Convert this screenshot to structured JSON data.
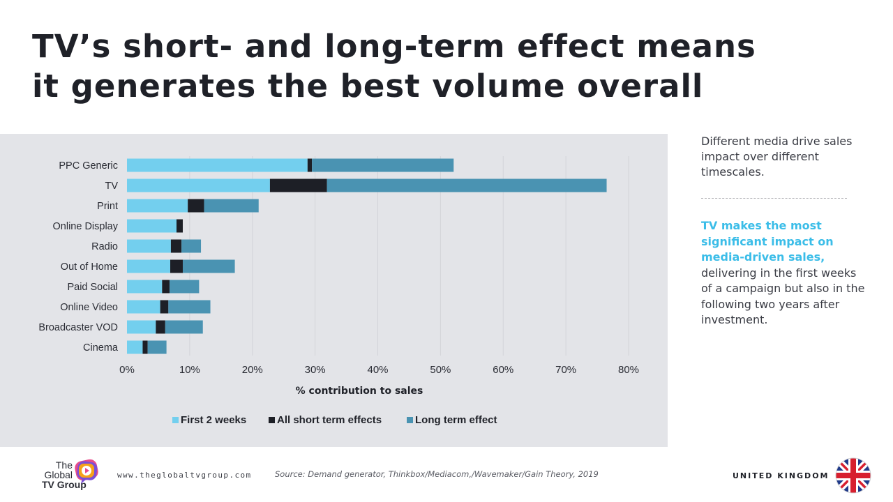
{
  "slide": {
    "title_line1": "TV’s short- and long-term effect means",
    "title_line2": "it generates the best volume overall"
  },
  "side": {
    "intro": "Different media drive sales impact over different timescales.",
    "highlight": "TV makes the most significant impact on media-driven sales,",
    "body": "delivering in the first weeks of a campaign but  also in the following two years after investment."
  },
  "footer": {
    "logo_line1": "The",
    "logo_line2": "Global",
    "logo_line3": "TV Group",
    "website": "www.theglobaltvgroup.com",
    "source": "Source:  Demand generator, Thinkbox/Mediacom,/Wavemaker/Gain Theory, 2019",
    "country": "UNITED KINGDOM"
  },
  "colors": {
    "first": "#73cfee",
    "short": "#1d1f26",
    "long": "#4a93b2",
    "highlight": "#3bbde8",
    "panel": "#e3e4e8"
  },
  "chart_data": {
    "type": "bar",
    "orientation": "horizontal",
    "stacked": true,
    "categories": [
      "PPC Generic",
      "TV",
      "Print",
      "Online Display",
      "Radio",
      "Out of Home",
      "Paid Social",
      "Online Video",
      "Broadcaster VOD",
      "Cinema"
    ],
    "series": [
      {
        "name": "First 2 weeks",
        "values": [
          28.8,
          22.8,
          9.7,
          7.9,
          7.0,
          6.9,
          5.6,
          5.3,
          4.6,
          2.5
        ]
      },
      {
        "name": "All short term effects",
        "values": [
          0.7,
          9.1,
          2.6,
          1.0,
          1.7,
          2.0,
          1.2,
          1.3,
          1.5,
          0.8
        ]
      },
      {
        "name": "Long term effect",
        "values": [
          22.6,
          44.6,
          8.7,
          0.0,
          3.1,
          8.3,
          4.7,
          6.7,
          6.0,
          3.0
        ]
      }
    ],
    "xlabel": "% contribution to sales",
    "ylabel": "",
    "xlim": [
      0,
      80
    ],
    "xticks": [
      0,
      10,
      20,
      30,
      40,
      50,
      60,
      70,
      80
    ],
    "xtick_labels": [
      "0%",
      "10%",
      "20%",
      "30%",
      "40%",
      "50%",
      "60%",
      "70%",
      "80%"
    ],
    "grid": true,
    "legend_position": "bottom"
  }
}
